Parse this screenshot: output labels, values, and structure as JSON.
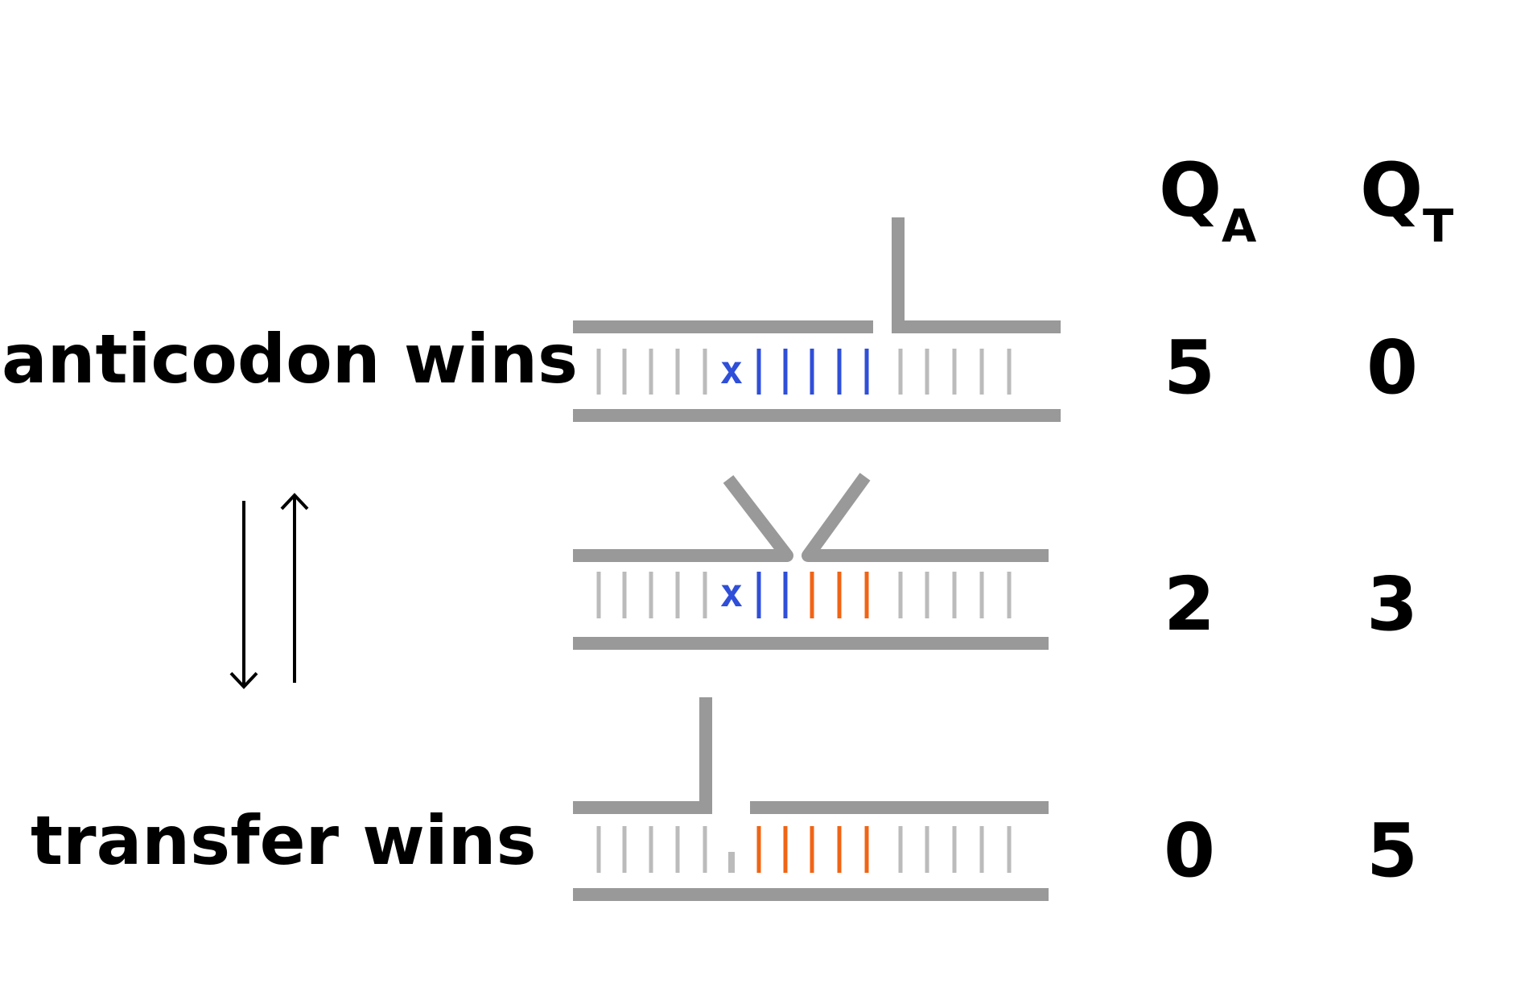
{
  "colors": {
    "gray_strand": "#999999",
    "light_pair": "#bbbbbb",
    "blue": "#2f4fd8",
    "orange": "#f06414",
    "header_blue": "#1f4fa5",
    "text": "#000000"
  },
  "header": {
    "qa": {
      "main": "Q",
      "sub": "A"
    },
    "qt": {
      "main": "Q",
      "sub": "T"
    }
  },
  "rows": [
    {
      "label": "anticodon wins",
      "qa": "5",
      "qt": "0",
      "mismatch": "x"
    },
    {
      "label": "",
      "qa": "2",
      "qt": "3",
      "mismatch": "x"
    },
    {
      "label": "transfer wins",
      "qa": "0",
      "qt": "5",
      "mismatch": ""
    }
  ],
  "arrows": {
    "forward": "down-arrow",
    "reverse": "up-arrow"
  }
}
